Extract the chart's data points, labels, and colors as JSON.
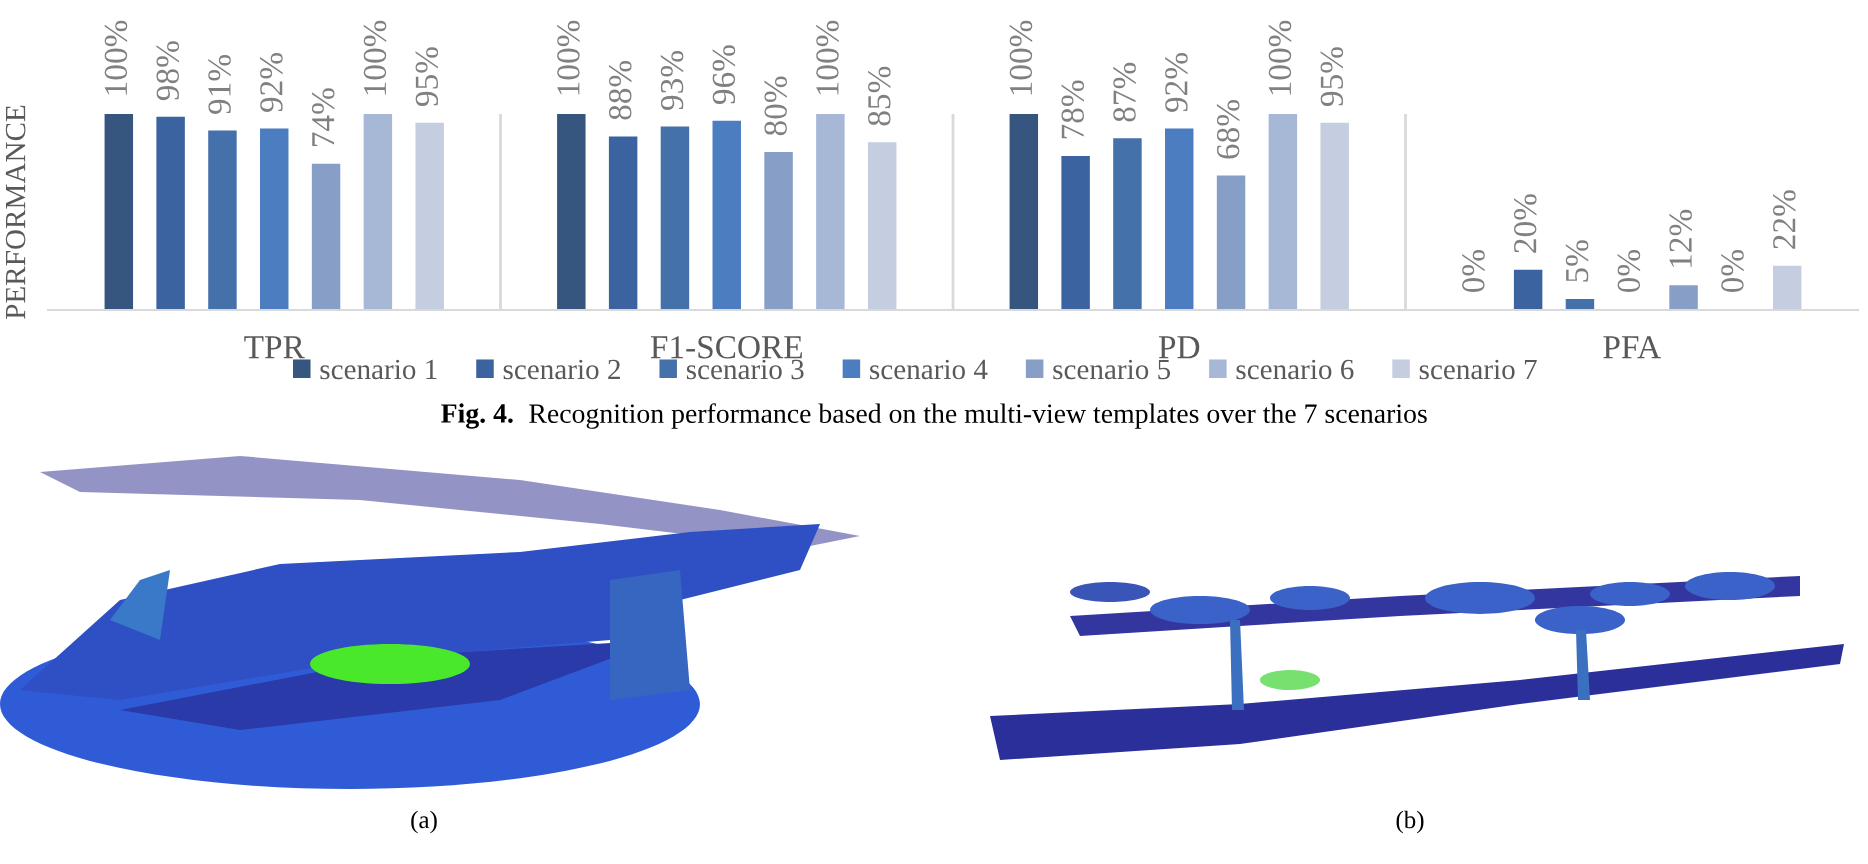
{
  "chart_data": {
    "type": "bar",
    "ylabel": "PERFORMANCE",
    "categories": [
      "TPR",
      "F1-SCORE",
      "PD",
      "PFA"
    ],
    "series": [
      {
        "name": "scenario 1",
        "color": "#36557f",
        "values": [
          100,
          100,
          100,
          0
        ],
        "value_labels": [
          "100%",
          "100%",
          "100%",
          "0%"
        ]
      },
      {
        "name": "scenario 2",
        "color": "#3b63a0",
        "values": [
          98,
          88,
          78,
          20
        ],
        "value_labels": [
          "98%",
          "88%",
          "78%",
          "20%"
        ]
      },
      {
        "name": "scenario 3",
        "color": "#4571ab",
        "values": [
          91,
          93,
          87,
          5
        ],
        "value_labels": [
          "91%",
          "93%",
          "87%",
          "5%"
        ]
      },
      {
        "name": "scenario 4",
        "color": "#4b7dc0",
        "values": [
          92,
          96,
          92,
          0
        ],
        "value_labels": [
          "92%",
          "96%",
          "92%",
          "0%"
        ]
      },
      {
        "name": "scenario 5",
        "color": "#879ec7",
        "values": [
          74,
          80,
          68,
          12
        ],
        "value_labels": [
          "74%",
          "80%",
          "68%",
          "12%"
        ]
      },
      {
        "name": "scenario 6",
        "color": "#a7b8d7",
        "values": [
          100,
          100,
          100,
          0
        ],
        "value_labels": [
          "100%",
          "100%",
          "100%",
          "0%"
        ]
      },
      {
        "name": "scenario 7",
        "color": "#c4cee0",
        "values": [
          95,
          85,
          95,
          22
        ],
        "value_labels": [
          "95%",
          "85%",
          "95%",
          "22%"
        ]
      }
    ],
    "grid": "x",
    "legend": "bottom",
    "tick_labels": "x",
    "annotations": [
      "Fig. 4.",
      "Recognition performance based on the multi-view templates over the 7 scenarios",
      "(a)",
      "(b)"
    ]
  }
}
